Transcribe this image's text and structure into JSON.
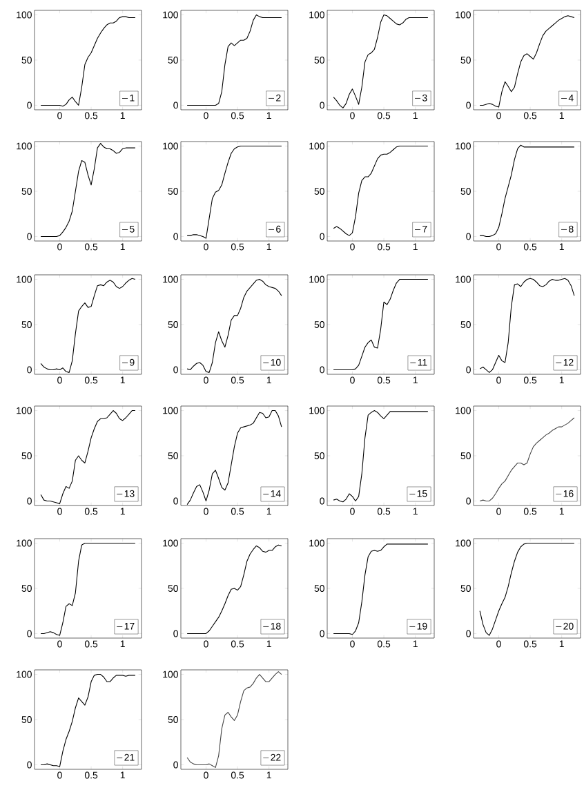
{
  "chart_data": [
    {
      "type": "line",
      "x": [
        -0.3,
        -0.25,
        -0.2,
        -0.15,
        -0.1,
        -0.05,
        0,
        0.05,
        0.1,
        0.15,
        0.2,
        0.25,
        0.3,
        0.35,
        0.4,
        0.45,
        0.5,
        0.55,
        0.6,
        0.65,
        0.7,
        0.75,
        0.8,
        0.85,
        0.9,
        0.95,
        1,
        1.05,
        1.1,
        1.15,
        1.2
      ],
      "series": [
        {
          "name": "1",
          "color": "#000000",
          "values": [
            0,
            0,
            0,
            0,
            0,
            0,
            0,
            -1,
            1,
            6,
            9,
            4,
            0,
            20,
            45,
            53,
            58,
            66,
            74,
            80,
            85,
            89,
            91,
            91,
            93,
            97,
            98,
            98,
            97,
            97,
            97
          ]
        }
      ],
      "xlim": [
        -0.4,
        1.3
      ],
      "ylim": [
        -5,
        105
      ],
      "xticks": [
        0,
        0.5,
        1
      ],
      "yticks": [
        0,
        50,
        100
      ],
      "legend": "bottom right"
    },
    {
      "type": "line",
      "x": [
        -0.3,
        -0.25,
        -0.2,
        -0.15,
        -0.1,
        -0.05,
        0,
        0.05,
        0.1,
        0.15,
        0.2,
        0.25,
        0.3,
        0.35,
        0.4,
        0.45,
        0.5,
        0.55,
        0.6,
        0.65,
        0.7,
        0.75,
        0.8,
        0.85,
        0.9,
        0.95,
        1,
        1.05,
        1.1,
        1.15,
        1.2
      ],
      "series": [
        {
          "name": "2",
          "color": "#000000",
          "values": [
            0,
            0,
            0,
            0,
            0,
            0,
            0,
            0,
            0,
            0,
            2,
            15,
            45,
            65,
            69,
            66,
            69,
            72,
            72,
            74,
            82,
            94,
            100,
            98,
            97,
            97,
            97,
            97,
            97,
            97,
            97
          ]
        }
      ],
      "xlim": [
        -0.4,
        1.3
      ],
      "ylim": [
        -5,
        105
      ],
      "xticks": [
        0,
        0.5,
        1
      ],
      "yticks": [
        0,
        50,
        100
      ],
      "legend": "bottom right"
    },
    {
      "type": "line",
      "x": [
        -0.3,
        -0.25,
        -0.2,
        -0.15,
        -0.1,
        -0.05,
        0,
        0.05,
        0.1,
        0.15,
        0.2,
        0.25,
        0.3,
        0.35,
        0.4,
        0.45,
        0.5,
        0.55,
        0.6,
        0.65,
        0.7,
        0.75,
        0.8,
        0.85,
        0.9,
        0.95,
        1,
        1.05,
        1.1,
        1.15,
        1.2
      ],
      "series": [
        {
          "name": "3",
          "color": "#000000",
          "values": [
            9,
            5,
            0,
            -3,
            2,
            12,
            18,
            10,
            1,
            20,
            48,
            56,
            58,
            62,
            75,
            92,
            100,
            99,
            96,
            93,
            90,
            89,
            91,
            95,
            97,
            97,
            97,
            97,
            97,
            97,
            97
          ]
        }
      ],
      "xlim": [
        -0.4,
        1.3
      ],
      "ylim": [
        -5,
        105
      ],
      "xticks": [
        0,
        0.5,
        1
      ],
      "yticks": [
        0,
        50,
        100
      ],
      "legend": "bottom right"
    },
    {
      "type": "line",
      "x": [
        -0.3,
        -0.25,
        -0.2,
        -0.15,
        -0.1,
        -0.05,
        0,
        0.05,
        0.1,
        0.15,
        0.2,
        0.25,
        0.3,
        0.35,
        0.4,
        0.45,
        0.5,
        0.55,
        0.6,
        0.65,
        0.7,
        0.75,
        0.8,
        0.85,
        0.9,
        0.95,
        1,
        1.05,
        1.1,
        1.15,
        1.2
      ],
      "series": [
        {
          "name": "4",
          "color": "#000000",
          "values": [
            0,
            0,
            1,
            2,
            1,
            -1,
            -2,
            15,
            26,
            21,
            15,
            20,
            35,
            48,
            55,
            57,
            54,
            51,
            58,
            68,
            77,
            82,
            85,
            88,
            91,
            94,
            96,
            98,
            99,
            98,
            97
          ]
        }
      ],
      "xlim": [
        -0.4,
        1.3
      ],
      "ylim": [
        -5,
        105
      ],
      "xticks": [
        0,
        0.5,
        1
      ],
      "yticks": [
        0,
        50,
        100
      ],
      "legend": "bottom right"
    },
    {
      "type": "line",
      "x": [
        -0.3,
        -0.25,
        -0.2,
        -0.15,
        -0.1,
        -0.05,
        0,
        0.05,
        0.1,
        0.15,
        0.2,
        0.25,
        0.3,
        0.35,
        0.4,
        0.45,
        0.5,
        0.55,
        0.6,
        0.65,
        0.7,
        0.75,
        0.8,
        0.85,
        0.9,
        0.95,
        1,
        1.05,
        1.1,
        1.15,
        1.2
      ],
      "series": [
        {
          "name": "5",
          "color": "#000000",
          "values": [
            0,
            0,
            0,
            0,
            0,
            0,
            1,
            5,
            10,
            17,
            28,
            50,
            72,
            84,
            82,
            68,
            57,
            75,
            98,
            103,
            99,
            97,
            97,
            95,
            92,
            93,
            97,
            98,
            98,
            98,
            98
          ]
        }
      ],
      "xlim": [
        -0.4,
        1.3
      ],
      "ylim": [
        -5,
        105
      ],
      "xticks": [
        0,
        0.5,
        1
      ],
      "yticks": [
        0,
        50,
        100
      ],
      "legend": "bottom right"
    },
    {
      "type": "line",
      "x": [
        -0.3,
        -0.25,
        -0.2,
        -0.15,
        -0.1,
        -0.05,
        0,
        0.05,
        0.1,
        0.15,
        0.2,
        0.25,
        0.3,
        0.35,
        0.4,
        0.45,
        0.5,
        0.55,
        0.6,
        0.65,
        0.7,
        0.75,
        0.8,
        0.85,
        0.9,
        0.95,
        1,
        1.05,
        1.1,
        1.15,
        1.2
      ],
      "series": [
        {
          "name": "6",
          "color": "#000000",
          "values": [
            1,
            1,
            2,
            2,
            1,
            0,
            -2,
            20,
            42,
            49,
            51,
            57,
            70,
            82,
            92,
            97,
            99,
            100,
            100,
            100,
            100,
            100,
            100,
            100,
            100,
            100,
            100,
            100,
            100,
            100,
            100
          ]
        }
      ],
      "xlim": [
        -0.4,
        1.3
      ],
      "ylim": [
        -5,
        105
      ],
      "xticks": [
        0,
        0.5,
        1
      ],
      "yticks": [
        0,
        50,
        100
      ],
      "legend": "bottom right"
    },
    {
      "type": "line",
      "x": [
        -0.3,
        -0.25,
        -0.2,
        -0.15,
        -0.1,
        -0.05,
        0,
        0.05,
        0.1,
        0.15,
        0.2,
        0.25,
        0.3,
        0.35,
        0.4,
        0.45,
        0.5,
        0.55,
        0.6,
        0.65,
        0.7,
        0.75,
        0.8,
        0.85,
        0.9,
        0.95,
        1,
        1.05,
        1.1,
        1.15,
        1.2
      ],
      "series": [
        {
          "name": "7",
          "color": "#000000",
          "values": [
            9,
            11,
            9,
            6,
            3,
            1,
            4,
            22,
            48,
            62,
            66,
            66,
            70,
            78,
            86,
            90,
            91,
            91,
            93,
            96,
            99,
            100,
            100,
            100,
            100,
            100,
            100,
            100,
            100,
            100,
            100
          ]
        }
      ],
      "xlim": [
        -0.4,
        1.3
      ],
      "ylim": [
        -5,
        105
      ],
      "xticks": [
        0,
        0.5,
        1
      ],
      "yticks": [
        0,
        50,
        100
      ],
      "legend": "bottom right"
    },
    {
      "type": "line",
      "x": [
        -0.3,
        -0.25,
        -0.2,
        -0.15,
        -0.1,
        -0.05,
        0,
        0.05,
        0.1,
        0.15,
        0.2,
        0.25,
        0.3,
        0.35,
        0.4,
        0.45,
        0.5,
        0.55,
        0.6,
        0.65,
        0.7,
        0.75,
        0.8,
        0.85,
        0.9,
        0.95,
        1,
        1.05,
        1.1,
        1.15,
        1.2
      ],
      "series": [
        {
          "name": "8",
          "color": "#000000",
          "values": [
            1,
            1,
            0,
            0,
            1,
            3,
            10,
            25,
            42,
            55,
            68,
            85,
            97,
            101,
            99,
            99,
            99,
            99,
            99,
            99,
            99,
            99,
            99,
            99,
            99,
            99,
            99,
            99,
            99,
            99,
            99
          ]
        }
      ],
      "xlim": [
        -0.4,
        1.3
      ],
      "ylim": [
        -5,
        105
      ],
      "xticks": [
        0,
        0.5,
        1
      ],
      "yticks": [
        0,
        50,
        100
      ],
      "legend": "bottom right"
    },
    {
      "type": "line",
      "x": [
        -0.3,
        -0.25,
        -0.2,
        -0.15,
        -0.1,
        -0.05,
        0,
        0.05,
        0.1,
        0.15,
        0.2,
        0.25,
        0.3,
        0.35,
        0.4,
        0.45,
        0.5,
        0.55,
        0.6,
        0.65,
        0.7,
        0.75,
        0.8,
        0.85,
        0.9,
        0.95,
        1,
        1.05,
        1.1,
        1.15,
        1.2
      ],
      "series": [
        {
          "name": "9",
          "color": "#000000",
          "values": [
            7,
            3,
            1,
            0,
            0,
            1,
            0,
            2,
            -2,
            -3,
            10,
            40,
            65,
            70,
            74,
            69,
            70,
            82,
            93,
            94,
            93,
            97,
            99,
            97,
            92,
            90,
            92,
            96,
            99,
            101,
            100
          ]
        }
      ],
      "xlim": [
        -0.4,
        1.3
      ],
      "ylim": [
        -5,
        105
      ],
      "xticks": [
        0,
        0.5,
        1
      ],
      "yticks": [
        0,
        50,
        100
      ],
      "legend": "bottom right"
    },
    {
      "type": "line",
      "x": [
        -0.3,
        -0.25,
        -0.2,
        -0.15,
        -0.1,
        -0.05,
        0,
        0.05,
        0.1,
        0.15,
        0.2,
        0.25,
        0.3,
        0.35,
        0.4,
        0.45,
        0.5,
        0.55,
        0.6,
        0.65,
        0.7,
        0.75,
        0.8,
        0.85,
        0.9,
        0.95,
        1,
        1.05,
        1.1,
        1.15,
        1.2
      ],
      "series": [
        {
          "name": "10",
          "color": "#000000",
          "values": [
            1,
            0,
            4,
            7,
            8,
            5,
            -2,
            -3,
            8,
            30,
            42,
            32,
            25,
            38,
            55,
            60,
            60,
            68,
            80,
            87,
            91,
            95,
            99,
            100,
            98,
            94,
            92,
            91,
            90,
            87,
            82
          ]
        }
      ],
      "xlim": [
        -0.4,
        1.3
      ],
      "ylim": [
        -5,
        105
      ],
      "xticks": [
        0,
        0.5,
        1
      ],
      "yticks": [
        0,
        50,
        100
      ],
      "legend": "bottom right"
    },
    {
      "type": "line",
      "x": [
        -0.3,
        -0.25,
        -0.2,
        -0.15,
        -0.1,
        -0.05,
        0,
        0.05,
        0.1,
        0.15,
        0.2,
        0.25,
        0.3,
        0.35,
        0.4,
        0.45,
        0.5,
        0.55,
        0.6,
        0.65,
        0.7,
        0.75,
        0.8,
        0.85,
        0.9,
        0.95,
        1,
        1.05,
        1.1,
        1.15,
        1.2
      ],
      "series": [
        {
          "name": "11",
          "color": "#000000",
          "values": [
            0,
            0,
            0,
            0,
            0,
            0,
            0,
            1,
            5,
            15,
            25,
            30,
            33,
            25,
            24,
            45,
            75,
            72,
            78,
            88,
            96,
            100,
            100,
            100,
            100,
            100,
            100,
            100,
            100,
            100,
            100
          ]
        }
      ],
      "xlim": [
        -0.4,
        1.3
      ],
      "ylim": [
        -5,
        105
      ],
      "xticks": [
        0,
        0.5,
        1
      ],
      "yticks": [
        0,
        50,
        100
      ],
      "legend": "bottom right"
    },
    {
      "type": "line",
      "x": [
        -0.3,
        -0.25,
        -0.2,
        -0.15,
        -0.1,
        -0.05,
        0,
        0.05,
        0.1,
        0.15,
        0.2,
        0.25,
        0.3,
        0.35,
        0.4,
        0.45,
        0.5,
        0.55,
        0.6,
        0.65,
        0.7,
        0.75,
        0.8,
        0.85,
        0.9,
        0.95,
        1,
        1.05,
        1.1,
        1.15,
        1.2
      ],
      "series": [
        {
          "name": "12",
          "color": "#000000",
          "values": [
            1,
            3,
            0,
            -3,
            0,
            8,
            16,
            10,
            8,
            30,
            70,
            94,
            95,
            92,
            97,
            100,
            101,
            100,
            97,
            93,
            92,
            94,
            98,
            100,
            99,
            99,
            100,
            101,
            99,
            93,
            82
          ]
        }
      ],
      "xlim": [
        -0.4,
        1.3
      ],
      "ylim": [
        -5,
        105
      ],
      "xticks": [
        0,
        0.5,
        1
      ],
      "yticks": [
        0,
        50,
        100
      ],
      "legend": "bottom right"
    },
    {
      "type": "line",
      "x": [
        -0.3,
        -0.25,
        -0.2,
        -0.15,
        -0.1,
        -0.05,
        0,
        0.05,
        0.1,
        0.15,
        0.2,
        0.25,
        0.3,
        0.35,
        0.4,
        0.45,
        0.5,
        0.55,
        0.6,
        0.65,
        0.7,
        0.75,
        0.8,
        0.85,
        0.9,
        0.95,
        1,
        1.05,
        1.1,
        1.15,
        1.2
      ],
      "series": [
        {
          "name": "13",
          "color": "#000000",
          "values": [
            7,
            1,
            0,
            0,
            -1,
            -2,
            -3,
            8,
            16,
            14,
            22,
            45,
            50,
            45,
            42,
            55,
            70,
            80,
            88,
            91,
            91,
            92,
            96,
            100,
            97,
            91,
            89,
            92,
            96,
            100,
            100
          ]
        }
      ],
      "xlim": [
        -0.4,
        1.3
      ],
      "ylim": [
        -5,
        105
      ],
      "xticks": [
        0,
        0.5,
        1
      ],
      "yticks": [
        0,
        50,
        100
      ],
      "legend": "bottom right"
    },
    {
      "type": "line",
      "x": [
        -0.3,
        -0.25,
        -0.2,
        -0.15,
        -0.1,
        -0.05,
        0,
        0.05,
        0.1,
        0.15,
        0.2,
        0.25,
        0.3,
        0.35,
        0.4,
        0.45,
        0.5,
        0.55,
        0.6,
        0.65,
        0.7,
        0.75,
        0.8,
        0.85,
        0.9,
        0.95,
        1,
        1.05,
        1.1,
        1.15,
        1.2
      ],
      "series": [
        {
          "name": "14",
          "color": "#000000",
          "values": [
            -4,
            1,
            9,
            16,
            18,
            10,
            0,
            12,
            30,
            34,
            25,
            15,
            12,
            20,
            40,
            60,
            75,
            81,
            82,
            83,
            84,
            86,
            92,
            98,
            97,
            92,
            93,
            100,
            100,
            94,
            82
          ]
        }
      ],
      "xlim": [
        -0.4,
        1.3
      ],
      "ylim": [
        -5,
        105
      ],
      "xticks": [
        0,
        0.5,
        1
      ],
      "yticks": [
        0,
        50,
        100
      ],
      "legend": "bottom right"
    },
    {
      "type": "line",
      "x": [
        -0.3,
        -0.25,
        -0.2,
        -0.15,
        -0.1,
        -0.05,
        0,
        0.05,
        0.1,
        0.15,
        0.2,
        0.25,
        0.3,
        0.35,
        0.4,
        0.45,
        0.5,
        0.55,
        0.6,
        0.65,
        0.7,
        0.75,
        0.8,
        0.85,
        0.9,
        0.95,
        1,
        1.05,
        1.1,
        1.15,
        1.2
      ],
      "series": [
        {
          "name": "15",
          "color": "#000000",
          "values": [
            1,
            2,
            0,
            -1,
            2,
            8,
            5,
            0,
            5,
            30,
            70,
            95,
            98,
            100,
            98,
            94,
            91,
            95,
            99,
            99,
            99,
            99,
            99,
            99,
            99,
            99,
            99,
            99,
            99,
            99,
            99
          ]
        }
      ],
      "xlim": [
        -0.4,
        1.3
      ],
      "ylim": [
        -5,
        105
      ],
      "xticks": [
        0,
        0.5,
        1
      ],
      "yticks": [
        0,
        50,
        100
      ],
      "legend": "bottom right"
    },
    {
      "type": "line",
      "x": [
        -0.3,
        -0.25,
        -0.2,
        -0.15,
        -0.1,
        -0.05,
        0,
        0.05,
        0.1,
        0.15,
        0.2,
        0.25,
        0.3,
        0.35,
        0.4,
        0.45,
        0.5,
        0.55,
        0.6,
        0.65,
        0.7,
        0.75,
        0.8,
        0.85,
        0.9,
        0.95,
        1,
        1.05,
        1.1,
        1.15,
        1.2
      ],
      "series": [
        {
          "name": "16",
          "color": "#444444",
          "values": [
            0,
            1,
            0,
            0,
            3,
            8,
            14,
            19,
            22,
            28,
            34,
            38,
            42,
            42,
            40,
            42,
            52,
            60,
            64,
            67,
            70,
            73,
            75,
            78,
            80,
            82,
            82,
            84,
            86,
            89,
            92
          ]
        }
      ],
      "xlim": [
        -0.4,
        1.3
      ],
      "ylim": [
        -5,
        105
      ],
      "xticks": [
        0,
        0.5,
        1
      ],
      "yticks": [
        0,
        50,
        100
      ],
      "legend": "bottom right"
    },
    {
      "type": "line",
      "x": [
        -0.3,
        -0.25,
        -0.2,
        -0.15,
        -0.1,
        -0.05,
        0,
        0.05,
        0.1,
        0.15,
        0.2,
        0.25,
        0.3,
        0.35,
        0.4,
        0.45,
        0.5,
        0.55,
        0.6,
        0.65,
        0.7,
        0.75,
        0.8,
        0.85,
        0.9,
        0.95,
        1,
        1.05,
        1.1,
        1.15,
        1.2
      ],
      "series": [
        {
          "name": "17",
          "color": "#000000",
          "values": [
            0,
            0,
            1,
            2,
            1,
            -1,
            -2,
            12,
            30,
            33,
            31,
            45,
            80,
            98,
            100,
            100,
            100,
            100,
            100,
            100,
            100,
            100,
            100,
            100,
            100,
            100,
            100,
            100,
            100,
            100,
            100
          ]
        }
      ],
      "xlim": [
        -0.4,
        1.3
      ],
      "ylim": [
        -5,
        105
      ],
      "xticks": [
        0,
        0.5,
        1
      ],
      "yticks": [
        0,
        50,
        100
      ],
      "legend": "bottom right"
    },
    {
      "type": "line",
      "x": [
        -0.3,
        -0.25,
        -0.2,
        -0.15,
        -0.1,
        -0.05,
        0,
        0.05,
        0.1,
        0.15,
        0.2,
        0.25,
        0.3,
        0.35,
        0.4,
        0.45,
        0.5,
        0.55,
        0.6,
        0.65,
        0.7,
        0.75,
        0.8,
        0.85,
        0.9,
        0.95,
        1,
        1.05,
        1.1,
        1.15,
        1.2
      ],
      "series": [
        {
          "name": "18",
          "color": "#000000",
          "values": [
            0,
            0,
            0,
            0,
            0,
            0,
            0,
            3,
            8,
            13,
            18,
            25,
            33,
            42,
            49,
            50,
            48,
            52,
            65,
            80,
            88,
            93,
            97,
            95,
            91,
            90,
            92,
            92,
            96,
            98,
            97
          ]
        }
      ],
      "xlim": [
        -0.4,
        1.3
      ],
      "ylim": [
        -5,
        105
      ],
      "xticks": [
        0,
        0.5,
        1
      ],
      "yticks": [
        0,
        50,
        100
      ],
      "legend": "bottom right"
    },
    {
      "type": "line",
      "x": [
        -0.3,
        -0.25,
        -0.2,
        -0.15,
        -0.1,
        -0.05,
        0,
        0.05,
        0.1,
        0.15,
        0.2,
        0.25,
        0.3,
        0.35,
        0.4,
        0.45,
        0.5,
        0.55,
        0.6,
        0.65,
        0.7,
        0.75,
        0.8,
        0.85,
        0.9,
        0.95,
        1,
        1.05,
        1.1,
        1.15,
        1.2
      ],
      "series": [
        {
          "name": "19",
          "color": "#000000",
          "values": [
            0,
            0,
            0,
            0,
            0,
            0,
            -1,
            3,
            12,
            35,
            65,
            85,
            91,
            92,
            91,
            92,
            96,
            99,
            99,
            99,
            99,
            99,
            99,
            99,
            99,
            99,
            99,
            99,
            99,
            99,
            99
          ]
        }
      ],
      "xlim": [
        -0.4,
        1.3
      ],
      "ylim": [
        -5,
        105
      ],
      "xticks": [
        0,
        0.5,
        1
      ],
      "yticks": [
        0,
        50,
        100
      ],
      "legend": "bottom right"
    },
    {
      "type": "line",
      "x": [
        -0.3,
        -0.25,
        -0.2,
        -0.15,
        -0.1,
        -0.05,
        0,
        0.05,
        0.1,
        0.15,
        0.2,
        0.25,
        0.3,
        0.35,
        0.4,
        0.45,
        0.5,
        0.55,
        0.6,
        0.65,
        0.7,
        0.75,
        0.8,
        0.85,
        0.9,
        0.95,
        1,
        1.05,
        1.1,
        1.15,
        1.2
      ],
      "series": [
        {
          "name": "20",
          "color": "#000000",
          "values": [
            25,
            10,
            1,
            -2,
            5,
            15,
            25,
            33,
            40,
            52,
            67,
            80,
            90,
            96,
            99,
            100,
            100,
            100,
            100,
            100,
            100,
            100,
            100,
            100,
            100,
            100,
            100,
            100,
            100,
            100,
            100
          ]
        }
      ],
      "xlim": [
        -0.4,
        1.3
      ],
      "ylim": [
        -5,
        105
      ],
      "xticks": [
        0,
        0.5,
        1
      ],
      "yticks": [
        0,
        50,
        100
      ],
      "legend": "bottom right"
    },
    {
      "type": "line",
      "x": [
        -0.3,
        -0.25,
        -0.2,
        -0.15,
        -0.1,
        -0.05,
        0,
        0.05,
        0.1,
        0.15,
        0.2,
        0.25,
        0.3,
        0.35,
        0.4,
        0.45,
        0.5,
        0.55,
        0.6,
        0.65,
        0.7,
        0.75,
        0.8,
        0.85,
        0.9,
        0.95,
        1,
        1.05,
        1.1,
        1.15,
        1.2
      ],
      "series": [
        {
          "name": "21",
          "color": "#000000",
          "values": [
            0,
            0,
            1,
            0,
            -1,
            -1,
            -2,
            15,
            28,
            37,
            48,
            63,
            74,
            70,
            66,
            75,
            92,
            99,
            100,
            100,
            97,
            92,
            92,
            96,
            99,
            99,
            99,
            98,
            99,
            99,
            99
          ]
        }
      ],
      "xlim": [
        -0.4,
        1.3
      ],
      "ylim": [
        -5,
        105
      ],
      "xticks": [
        0,
        0.5,
        1
      ],
      "yticks": [
        0,
        50,
        100
      ],
      "legend": "bottom right"
    },
    {
      "type": "line",
      "x": [
        -0.3,
        -0.25,
        -0.2,
        -0.15,
        -0.1,
        -0.05,
        0,
        0.05,
        0.1,
        0.15,
        0.2,
        0.25,
        0.3,
        0.35,
        0.4,
        0.45,
        0.5,
        0.55,
        0.6,
        0.65,
        0.7,
        0.75,
        0.8,
        0.85,
        0.9,
        0.95,
        1,
        1.05,
        1.1,
        1.15,
        1.2
      ],
      "series": [
        {
          "name": "22",
          "color": "#444444",
          "values": [
            8,
            3,
            1,
            0,
            0,
            0,
            0,
            1,
            -1,
            -3,
            10,
            40,
            55,
            58,
            53,
            49,
            55,
            70,
            82,
            85,
            86,
            90,
            96,
            100,
            96,
            92,
            92,
            96,
            100,
            103,
            100
          ]
        }
      ],
      "xlim": [
        -0.4,
        1.3
      ],
      "ylim": [
        -5,
        105
      ],
      "xticks": [
        0,
        0.5,
        1
      ],
      "yticks": [
        0,
        50,
        100
      ],
      "legend": "bottom right"
    }
  ]
}
